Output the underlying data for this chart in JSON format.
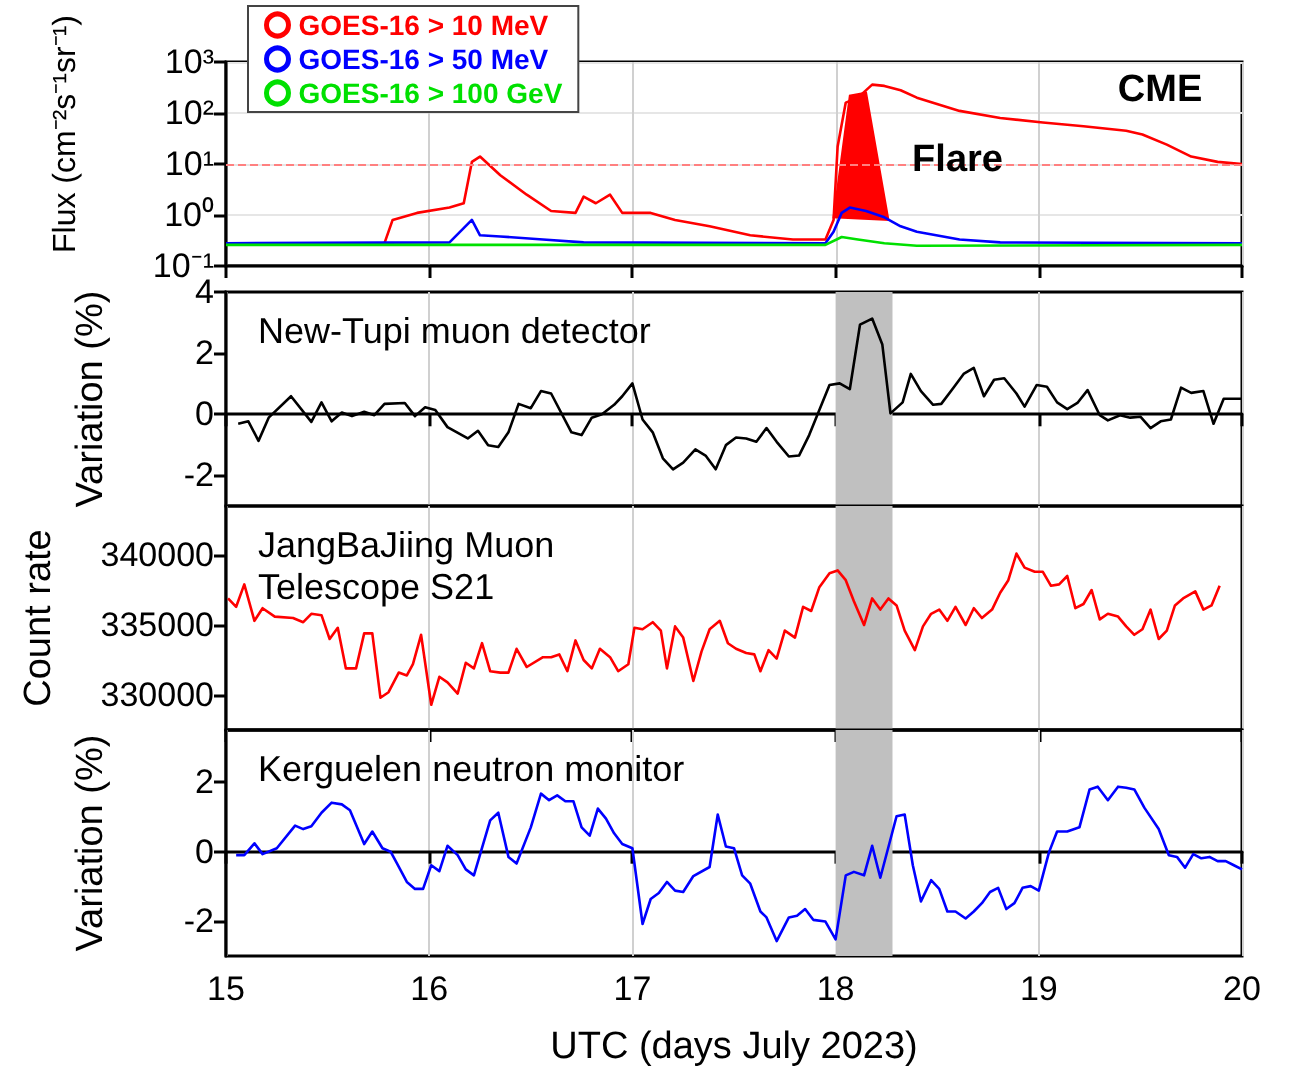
{
  "chart_data": [
    {
      "type": "line",
      "ylabel": "Flux (cm⁻²s⁻¹sr⁻¹)",
      "log": "y",
      "xlim": [
        15,
        20
      ],
      "xticks": [
        15,
        16,
        17,
        18,
        19,
        20
      ],
      "ylim": [
        0.1,
        1000
      ],
      "yticks": [
        {
          "value": 0.1,
          "label": "10⁻¹"
        },
        {
          "value": 1,
          "label": "10⁰"
        },
        {
          "value": 10,
          "label": "10¹"
        },
        {
          "value": 100,
          "label": "10²"
        },
        {
          "value": 1000,
          "label": "10³"
        }
      ],
      "tick_labels": "y",
      "grid": true,
      "legend": "top left",
      "marker": "none",
      "line_style": "solid",
      "series": [
        {
          "name": "GOES-16 > 10 MeV",
          "color": "#ff0000",
          "x": [
            15,
            15.78,
            15.82,
            15.94,
            16.1,
            16.17,
            16.21,
            16.25,
            16.29,
            16.35,
            16.48,
            16.6,
            16.72,
            16.76,
            16.82,
            16.89,
            16.95,
            17.09,
            17.21,
            17.38,
            17.58,
            17.79,
            17.95,
            17.99,
            18.01,
            18.05,
            18.11,
            18.18,
            18.24,
            18.32,
            18.4,
            18.61,
            18.81,
            19.02,
            19.22,
            19.43,
            19.51,
            19.63,
            19.75,
            19.88,
            20
          ],
          "values": [
            0.28,
            0.28,
            0.8,
            1.1,
            1.4,
            1.7,
            11,
            14,
            10,
            6,
            2.5,
            1.2,
            1.1,
            2.3,
            1.7,
            2.5,
            1.1,
            1.1,
            0.8,
            0.6,
            0.4,
            0.33,
            0.33,
            0.8,
            22,
            160,
            200,
            360,
            340,
            280,
            200,
            110,
            80,
            65,
            55,
            45,
            38,
            24,
            14,
            11,
            10
          ]
        },
        {
          "name": "GOES-16 > 50 MeV",
          "color": "#0000ff",
          "x": [
            15,
            16.1,
            16.21,
            16.25,
            16.35,
            16.56,
            16.76,
            17.95,
            17.99,
            18.03,
            18.07,
            18.15,
            18.24,
            18.32,
            18.4,
            18.61,
            18.81,
            20
          ],
          "values": [
            0.28,
            0.29,
            0.8,
            0.4,
            0.38,
            0.33,
            0.29,
            0.28,
            0.47,
            1.1,
            1.4,
            1.2,
            0.9,
            0.6,
            0.47,
            0.33,
            0.29,
            0.28
          ]
        },
        {
          "name": "GOES-16 > 100 GeV",
          "color": "#00e000",
          "x": [
            15,
            17.95,
            18.03,
            18.11,
            18.24,
            18.4,
            20
          ],
          "values": [
            0.26,
            0.26,
            0.37,
            0.33,
            0.28,
            0.25,
            0.26
          ]
        },
        {
          "type": "area",
          "color": "#ff0000",
          "x": [
            17.99,
            18.07,
            18.15,
            18.26
          ],
          "values": [
            0.9,
            220,
            250,
            0.8
          ]
        }
      ],
      "ref_lines": [
        {
          "axis": "y",
          "value": 10,
          "color": "#ff8080",
          "line_style": "dashed"
        }
      ],
      "annotations": [
        {
          "text": "Flare",
          "x": 18.6,
          "y": 12
        },
        "CME"
      ]
    },
    {
      "type": "line",
      "title": "New-Tupi muon detector",
      "ylabel": "Variation (%)",
      "xlim": [
        15,
        20
      ],
      "xticks": [
        15,
        16,
        17,
        18,
        19,
        20
      ],
      "ylim": [
        -3,
        4
      ],
      "yticks": [
        -2,
        0,
        2,
        4
      ],
      "tick_labels": "y",
      "grid": "x",
      "marker": "none",
      "line_style": "solid",
      "series": [
        {
          "color": "#000000",
          "x": [
            15.06,
            15.11,
            15.16,
            15.21,
            15.32,
            15.42,
            15.47,
            15.52,
            15.57,
            15.62,
            15.68,
            15.73,
            15.78,
            15.88,
            15.93,
            15.98,
            16.03,
            16.09,
            16.19,
            16.24,
            16.29,
            16.34,
            16.39,
            16.44,
            16.5,
            16.55,
            16.6,
            16.7,
            16.75,
            16.8,
            16.85,
            16.91,
            16.95,
            17.0,
            17.05,
            17.1,
            17.15,
            17.2,
            17.25,
            17.31,
            17.36,
            17.41,
            17.46,
            17.51,
            17.56,
            17.61,
            17.66,
            17.71,
            17.77,
            17.82,
            17.87,
            17.97,
            18.02,
            18.07,
            18.12,
            18.18,
            18.23,
            18.27,
            18.33,
            18.37,
            18.42,
            18.48,
            18.52,
            18.58,
            18.63,
            18.68,
            18.73,
            18.78,
            18.83,
            18.89,
            18.93,
            18.99,
            19.04,
            19.09,
            19.14,
            19.19,
            19.24,
            19.3,
            19.34,
            19.4,
            19.45,
            19.5,
            19.55,
            19.6,
            19.65,
            19.7,
            19.75,
            19.81,
            19.86,
            19.91,
            20.0
          ],
          "values": [
            -0.31,
            -0.23,
            -0.87,
            -0.11,
            0.59,
            -0.25,
            0.39,
            -0.23,
            0.06,
            -0.06,
            0.08,
            -0.03,
            0.34,
            0.37,
            -0.06,
            0.23,
            0.14,
            -0.42,
            -0.79,
            -0.54,
            -1.01,
            -1.07,
            -0.59,
            0.34,
            0.2,
            0.76,
            0.68,
            -0.59,
            -0.68,
            -0.11,
            0,
            0.31,
            0.59,
            1.01,
            -0.17,
            -0.59,
            -1.44,
            -1.8,
            -1.58,
            -1.15,
            -1.35,
            -1.8,
            -1.01,
            -0.76,
            -0.79,
            -0.9,
            -0.45,
            -0.9,
            -1.38,
            -1.35,
            -0.68,
            0.96,
            1.01,
            0.82,
            2.93,
            3.13,
            2.28,
            0.03,
            0.39,
            1.32,
            0.76,
            0.31,
            0.34,
            0.87,
            1.32,
            1.52,
            0.59,
            1.13,
            1.18,
            0.68,
            0.25,
            0.96,
            0.9,
            0.39,
            0.17,
            0.37,
            0.79,
            -0.03,
            -0.2,
            -0.03,
            -0.11,
            -0.08,
            -0.45,
            -0.23,
            -0.17,
            0.87,
            0.7,
            0.76,
            -0.31,
            0.51,
            0.51
          ]
        }
      ],
      "bands": [
        {
          "axis": "x",
          "from": 18,
          "to": 18.28,
          "color": "#c0c0c0"
        }
      ]
    },
    {
      "type": "line",
      "title": "JangBaJiing Muon Telescope S21",
      "ylabel": "Count rate",
      "xlim": [
        15,
        20
      ],
      "xticks": [
        15,
        16,
        17,
        18,
        19,
        20
      ],
      "ylim": [
        327500,
        343500
      ],
      "yticks": [
        330000,
        335000,
        340000
      ],
      "tick_labels": "y",
      "grid": "x",
      "marker": "none",
      "line_style": "solid",
      "series": [
        {
          "color": "#ff0000",
          "x": [
            15.01,
            15.05,
            15.09,
            15.14,
            15.18,
            15.24,
            15.33,
            15.38,
            15.42,
            15.47,
            15.51,
            15.55,
            15.59,
            15.64,
            15.68,
            15.72,
            15.76,
            15.8,
            15.85,
            15.89,
            15.92,
            15.96,
            16.01,
            16.05,
            16.09,
            16.14,
            16.18,
            16.22,
            16.26,
            16.3,
            16.35,
            16.39,
            16.43,
            16.48,
            16.56,
            16.6,
            16.64,
            16.68,
            16.72,
            16.76,
            16.8,
            16.84,
            16.89,
            16.93,
            16.98,
            17.01,
            17.05,
            17.1,
            17.14,
            17.17,
            17.21,
            17.25,
            17.3,
            17.34,
            17.38,
            17.43,
            17.47,
            17.51,
            17.56,
            17.6,
            17.63,
            17.67,
            17.71,
            17.75,
            17.8,
            17.84,
            17.88,
            17.92,
            17.97,
            18.01,
            18.05,
            18.09,
            18.14,
            18.18,
            18.22,
            18.26,
            18.3,
            18.34,
            18.39,
            18.43,
            18.47,
            18.51,
            18.55,
            18.59,
            18.64,
            18.68,
            18.72,
            18.77,
            18.81,
            18.85,
            18.89,
            18.93,
            18.98,
            19.02,
            19.06,
            19.1,
            19.14,
            19.18,
            19.22,
            19.26,
            19.3,
            19.34,
            19.39,
            19.43,
            19.47,
            19.51,
            19.55,
            19.59,
            19.63,
            19.67,
            19.71,
            19.77,
            19.81,
            19.85,
            19.89
          ],
          "values": [
            336900,
            336300,
            337900,
            335300,
            336200,
            335600,
            335500,
            335200,
            335800,
            335700,
            334000,
            334800,
            331900,
            331900,
            334400,
            334400,
            329800,
            330200,
            331600,
            331400,
            332200,
            334300,
            329300,
            331300,
            330900,
            330100,
            332300,
            331900,
            333700,
            331700,
            331600,
            331600,
            333300,
            332000,
            332700,
            332700,
            332900,
            331700,
            333900,
            332500,
            331900,
            333300,
            332700,
            331700,
            332200,
            334800,
            334700,
            335200,
            334600,
            331900,
            334900,
            334100,
            331000,
            333100,
            334700,
            335300,
            333700,
            333300,
            333000,
            332900,
            331700,
            333200,
            332600,
            334600,
            334100,
            336300,
            336000,
            337700,
            338700,
            338900,
            338200,
            336700,
            335000,
            336900,
            336100,
            336900,
            336400,
            334600,
            333200,
            334900,
            335800,
            336100,
            335300,
            336300,
            335000,
            336200,
            335500,
            336100,
            337300,
            338200,
            340100,
            339100,
            338800,
            338800,
            337800,
            337900,
            338500,
            336200,
            336500,
            337500,
            335400,
            335800,
            335600,
            334900,
            334300,
            334700,
            336100,
            334000,
            334600,
            336400,
            336900,
            337400,
            336100,
            336400,
            337800
          ]
        }
      ],
      "bands": [
        {
          "axis": "x",
          "from": 18,
          "to": 18.28,
          "color": "#c0c0c0"
        }
      ]
    },
    {
      "type": "line",
      "title": "Kerguelen neutron monitor",
      "xlabel": "UTC (days July 2023)",
      "ylabel": "Variation (%)",
      "xlim": [
        15,
        20
      ],
      "xticks": [
        15,
        16,
        17,
        18,
        19,
        20
      ],
      "ylim": [
        -3,
        3.5
      ],
      "yticks": [
        -2,
        0,
        2
      ],
      "grid": "x",
      "marker": "none",
      "line_style": "solid",
      "series": [
        {
          "color": "#0000ff",
          "x": [
            15.05,
            15.09,
            15.14,
            15.18,
            15.25,
            15.34,
            15.38,
            15.42,
            15.47,
            15.52,
            15.57,
            15.61,
            15.68,
            15.72,
            15.77,
            15.81,
            15.84,
            15.89,
            15.93,
            15.97,
            16.01,
            16.05,
            16.09,
            16.14,
            16.18,
            16.22,
            16.3,
            16.34,
            16.39,
            16.43,
            16.5,
            16.55,
            16.59,
            16.63,
            16.67,
            16.71,
            16.75,
            16.79,
            16.83,
            16.87,
            16.91,
            16.95,
            17.0,
            17.05,
            17.09,
            17.13,
            17.17,
            17.21,
            17.25,
            17.3,
            17.38,
            17.42,
            17.46,
            17.5,
            17.54,
            17.58,
            17.63,
            17.66,
            17.71,
            17.77,
            17.81,
            17.85,
            17.89,
            17.95,
            18.0,
            18.05,
            18.09,
            18.14,
            18.18,
            18.22,
            18.3,
            18.34,
            18.38,
            18.42,
            18.47,
            18.51,
            18.55,
            18.59,
            18.64,
            18.68,
            18.72,
            18.76,
            18.8,
            18.84,
            18.88,
            18.92,
            18.96,
            19.0,
            19.05,
            19.09,
            19.14,
            19.2,
            19.25,
            19.29,
            19.34,
            19.39,
            19.43,
            19.47,
            19.52,
            19.59,
            19.64,
            19.68,
            19.72,
            19.76,
            19.8,
            19.84,
            19.88,
            19.92,
            19.96,
            20.0
          ],
          "values": [
            -0.1,
            -0.1,
            0.24,
            -0.07,
            0.1,
            0.75,
            0.65,
            0.73,
            1.12,
            1.41,
            1.36,
            1.19,
            0.22,
            0.58,
            0.1,
            0,
            -0.32,
            -0.87,
            -1.07,
            -1.07,
            -0.39,
            -0.56,
            0.17,
            -0.1,
            -0.51,
            -0.68,
            0.9,
            1.12,
            -0.15,
            -0.34,
            0.7,
            1.67,
            1.48,
            1.62,
            1.45,
            1.45,
            0.7,
            0.46,
            1.24,
            0.95,
            0.53,
            0.22,
            0.1,
            -2.08,
            -1.36,
            -1.19,
            -0.87,
            -1.12,
            -1.16,
            -0.7,
            -0.44,
            1.07,
            0.15,
            0.1,
            -0.68,
            -0.92,
            -1.72,
            -1.89,
            -2.57,
            -1.89,
            -1.84,
            -1.65,
            -1.96,
            -2.01,
            -2.52,
            -0.68,
            -0.58,
            -0.68,
            0.17,
            -0.75,
            1.02,
            1.07,
            -0.39,
            -1.43,
            -0.82,
            -1.07,
            -1.72,
            -1.72,
            -1.92,
            -1.72,
            -1.48,
            -1.16,
            -1.04,
            -1.65,
            -1.48,
            -1.04,
            -0.99,
            -1.12,
            -0.02,
            0.58,
            0.58,
            0.7,
            1.79,
            1.87,
            1.48,
            1.87,
            1.84,
            1.79,
            1.26,
            0.65,
            -0.1,
            -0.15,
            -0.46,
            -0.07,
            -0.19,
            -0.15,
            -0.27,
            -0.27,
            -0.39,
            -0.51
          ]
        }
      ],
      "bands": [
        {
          "axis": "x",
          "from": 18,
          "to": 18.28,
          "color": "#c0c0c0"
        }
      ]
    }
  ]
}
